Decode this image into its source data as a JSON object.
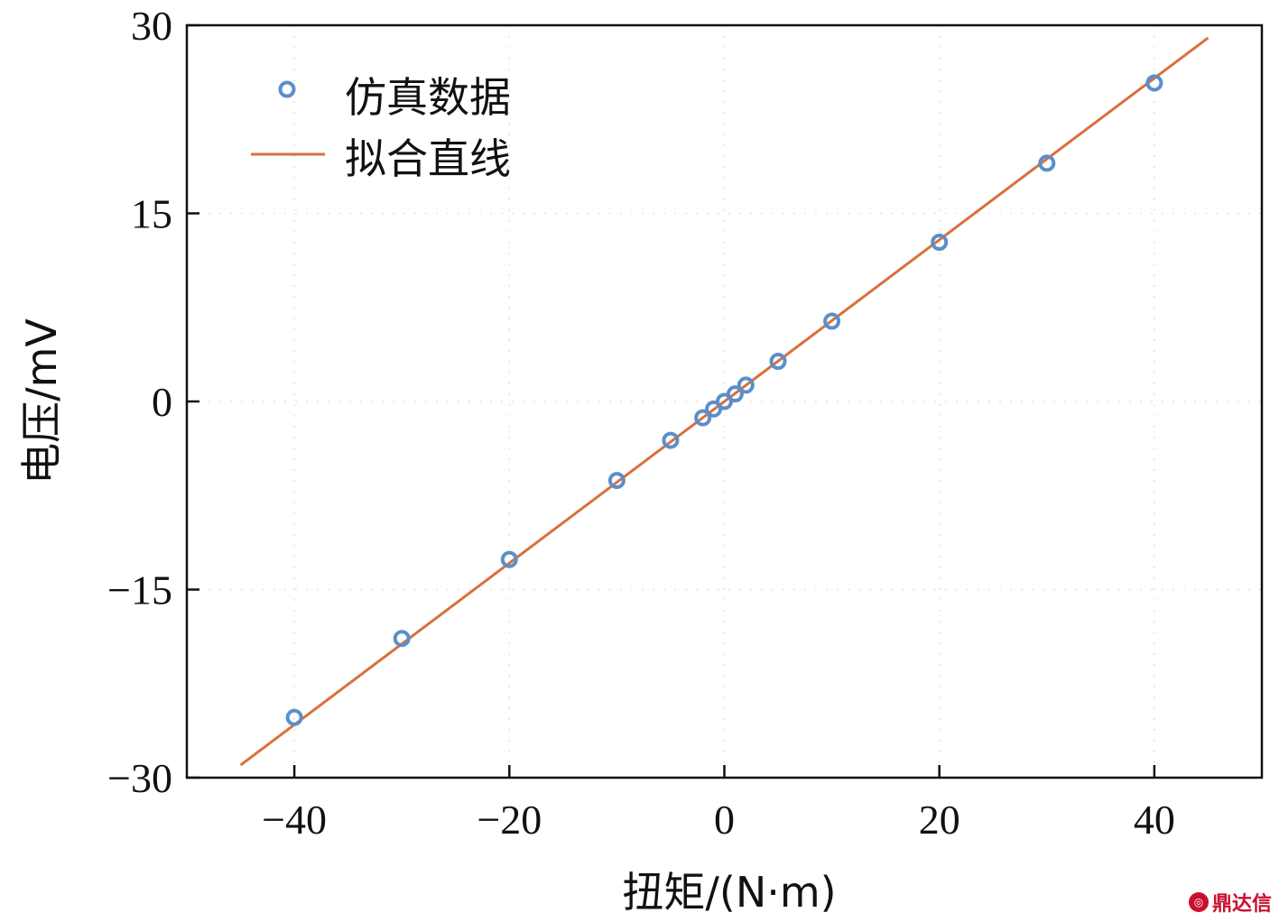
{
  "chart_data": {
    "type": "scatter",
    "xlabel": "扭矩/(N·m)",
    "ylabel": "电压/mV",
    "xlim": [
      -50,
      50
    ],
    "ylim": [
      -30,
      30
    ],
    "xticks": [
      -40,
      -20,
      0,
      20,
      40
    ],
    "xtick_labels": [
      "−40",
      "−20",
      "0",
      "20",
      "40"
    ],
    "yticks": [
      -30,
      -15,
      0,
      15,
      30
    ],
    "ytick_labels": [
      "−30",
      "−15",
      "0",
      "15",
      "30"
    ],
    "grid": true,
    "legend_position": "top-left",
    "series": [
      {
        "name": "仿真数据",
        "kind": "scatter",
        "color": "#5b8fc9",
        "x": [
          -40,
          -30,
          -20,
          -10,
          -5,
          -2,
          -1,
          0,
          1,
          2,
          5,
          10,
          20,
          30,
          40
        ],
        "y": [
          -25.2,
          -18.9,
          -12.6,
          -6.3,
          -3.1,
          -1.3,
          -0.6,
          0,
          0.6,
          1.3,
          3.2,
          6.4,
          12.7,
          19.0,
          25.4
        ]
      },
      {
        "name": "拟合直线",
        "kind": "line",
        "color": "#d9703c",
        "x": [
          -45,
          45
        ],
        "y": [
          -29.0,
          29.0
        ]
      }
    ]
  },
  "watermark": {
    "icon": "chat-bubble-icon",
    "text": "鼎达信"
  }
}
